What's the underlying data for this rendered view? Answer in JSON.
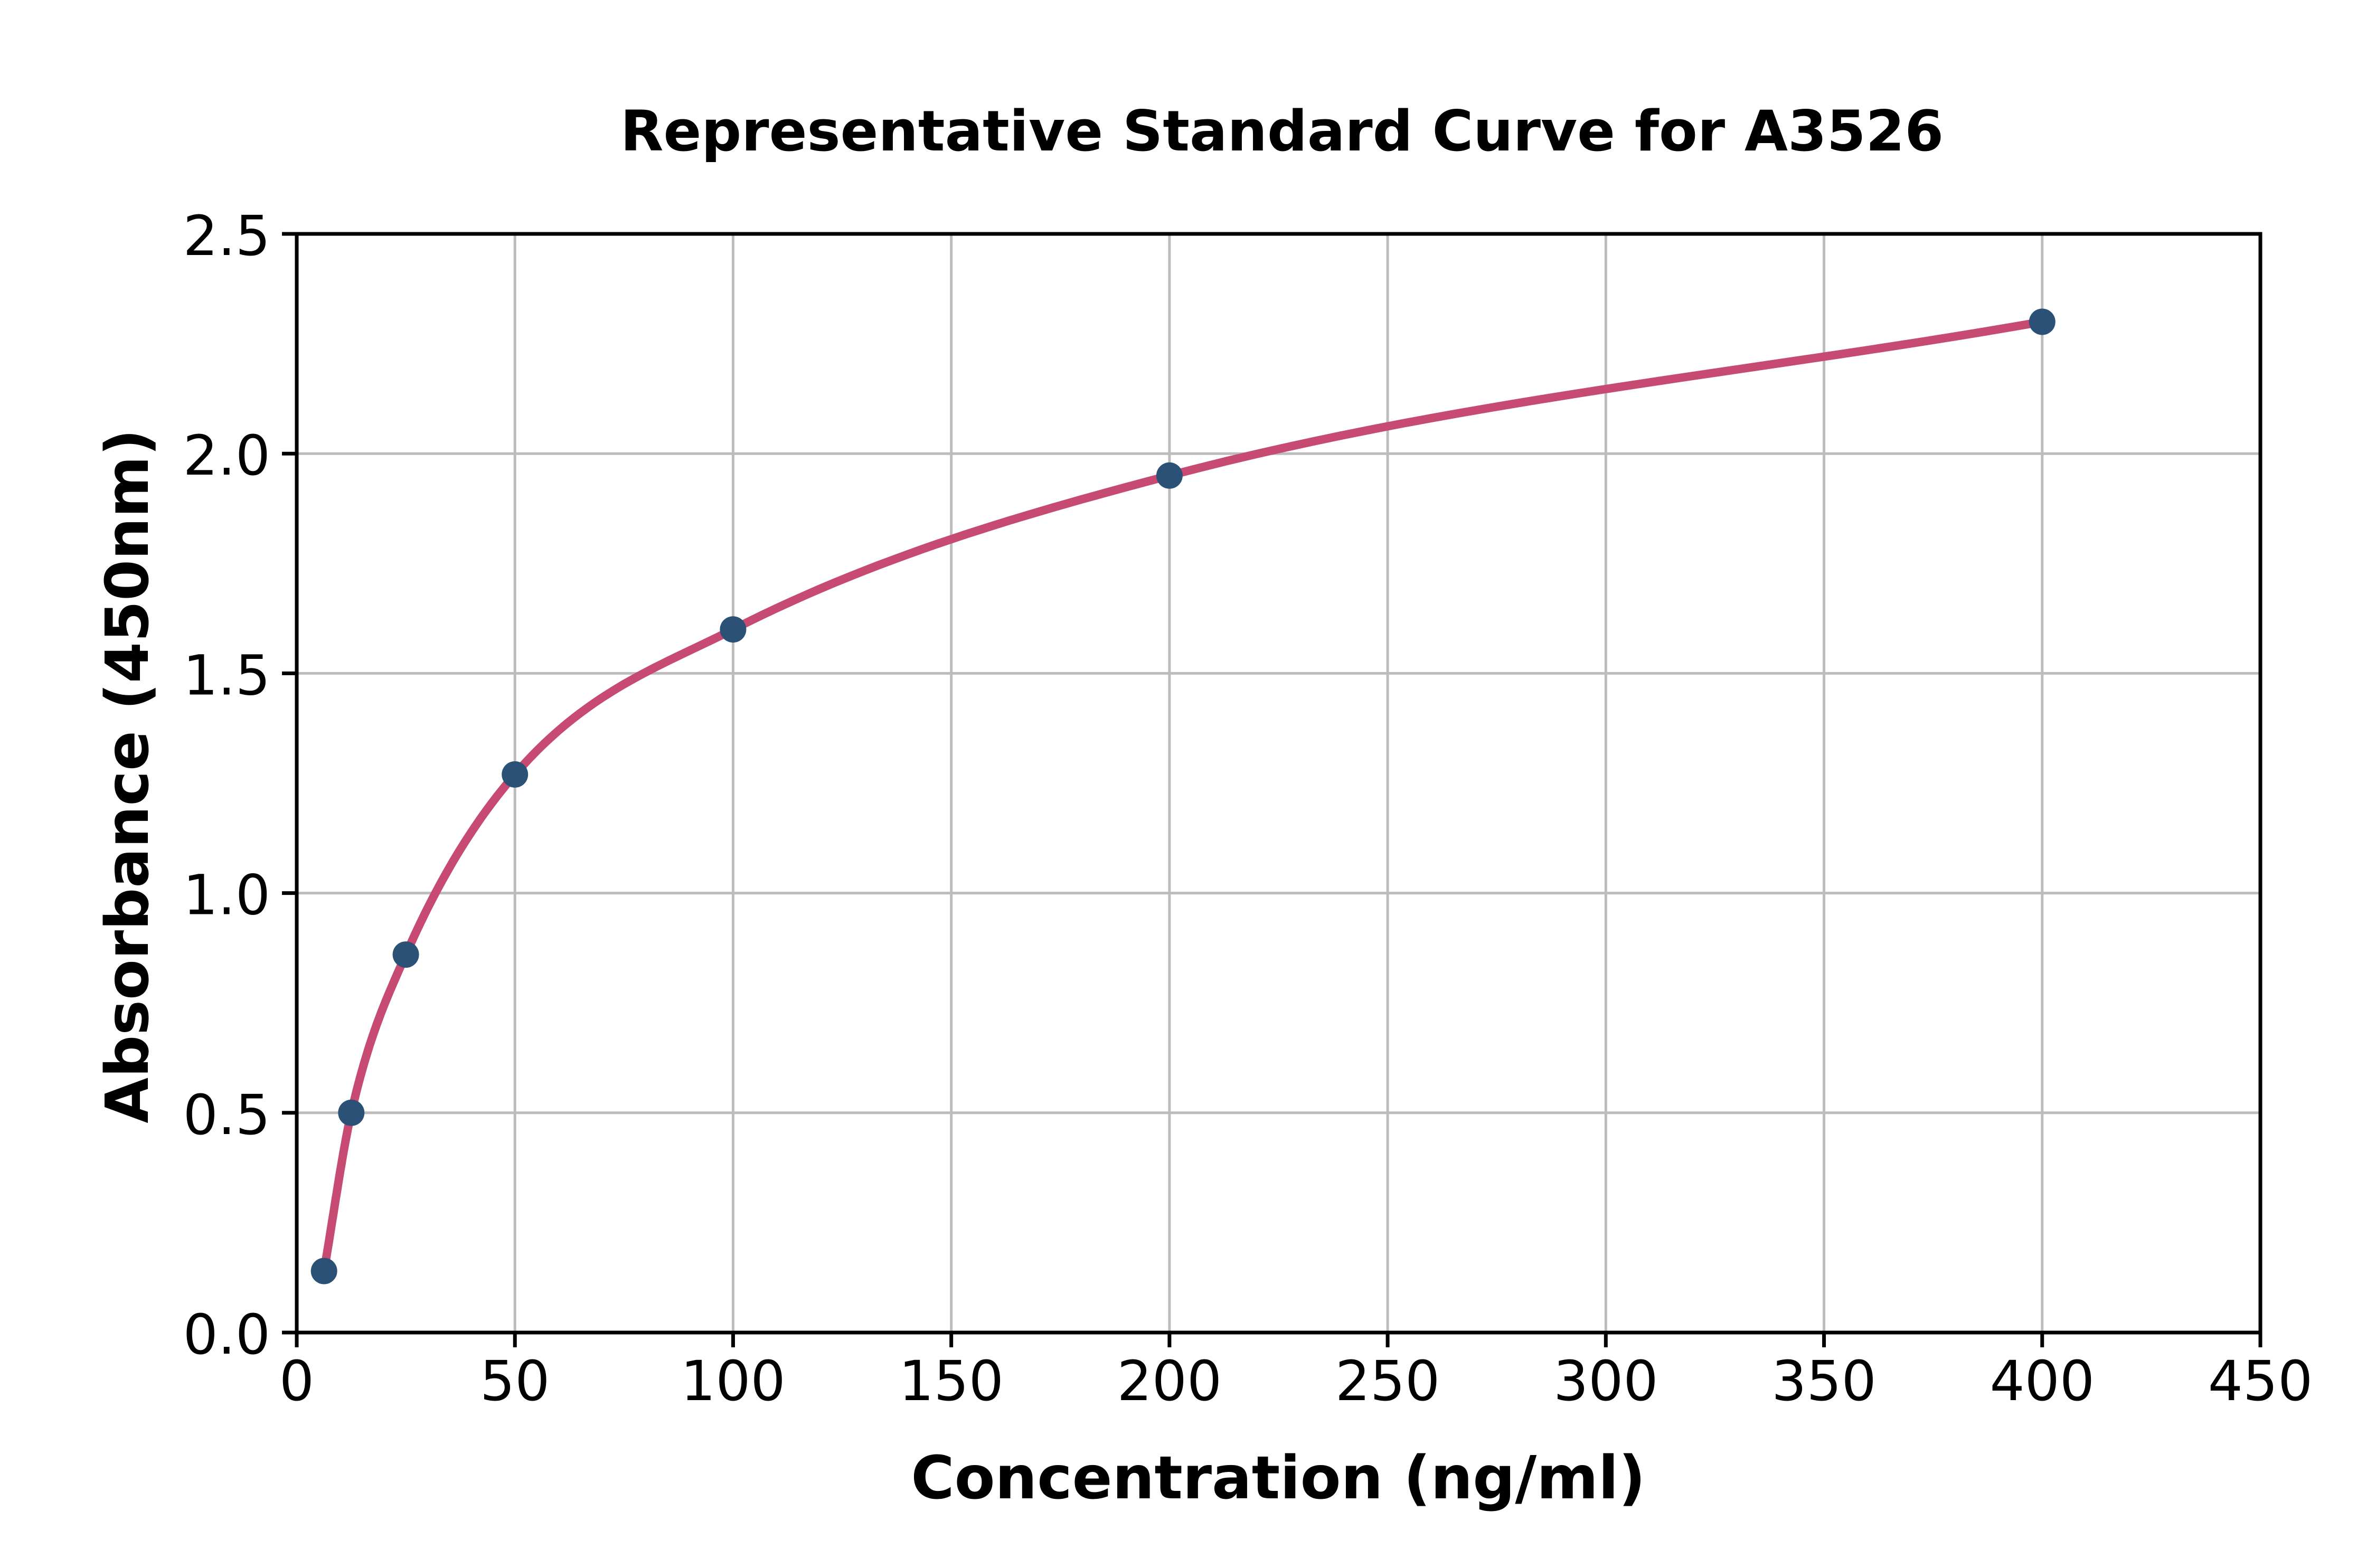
{
  "chart_data": {
    "type": "scatter",
    "fit_line": true,
    "title": "Representative Standard Curve for A3526",
    "xlabel": "Concentration (ng/ml)",
    "ylabel": "Absorbance (450nm)",
    "x": [
      6.25,
      12.5,
      25,
      50,
      100,
      200,
      400
    ],
    "y": [
      0.14,
      0.5,
      0.86,
      1.27,
      1.6,
      1.95,
      2.3
    ],
    "xlim": [
      0,
      450
    ],
    "ylim": [
      0,
      2.5
    ],
    "xticks": [
      0,
      50,
      100,
      150,
      200,
      250,
      300,
      350,
      400,
      450
    ],
    "yticks": [
      0.0,
      0.5,
      1.0,
      1.5,
      2.0,
      2.5
    ],
    "ytick_decimals": 1,
    "grid": true,
    "legend_position": "none",
    "colors": {
      "point": "#2c5177",
      "line": "#c64a72",
      "grid": "#bcbcbc",
      "frame": "#000000",
      "text": "#000000",
      "background": "#ffffff"
    }
  }
}
